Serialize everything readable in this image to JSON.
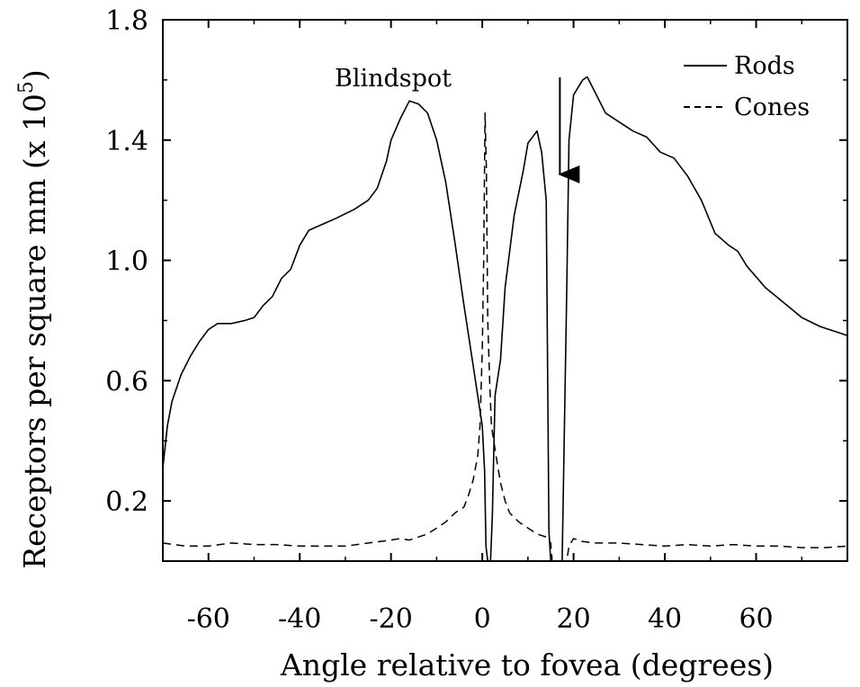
{
  "chart_data": {
    "type": "line",
    "xlabel": "Angle relative to fovea (degrees)",
    "ylabel": "Receptors per square mm",
    "ylabel_suffix": "(x 10",
    "ylabel_exponent": "5",
    "ylabel_close": ")",
    "xlim": [
      -70,
      80
    ],
    "ylim": [
      0,
      1.8
    ],
    "x_ticks": [
      -60,
      -40,
      -20,
      0,
      20,
      40,
      60
    ],
    "x_tick_labels": [
      "-60",
      "-40",
      "-20",
      "0",
      "20",
      "40",
      "60"
    ],
    "y_ticks": [
      0.2,
      0.6,
      1.0,
      1.4,
      1.8
    ],
    "y_tick_labels": [
      "0.2",
      "0.6",
      "1.0",
      "1.4",
      "1.8"
    ],
    "grid": false,
    "legend_position": "top-right",
    "annotation": {
      "text": "Blindspot",
      "x": 17,
      "y": 1.25
    },
    "series": [
      {
        "name": "Rods",
        "style": "solid",
        "points": [
          [
            -70,
            0.31
          ],
          [
            -69,
            0.45
          ],
          [
            -68,
            0.53
          ],
          [
            -66,
            0.62
          ],
          [
            -64,
            0.68
          ],
          [
            -62,
            0.73
          ],
          [
            -60,
            0.77
          ],
          [
            -58,
            0.79
          ],
          [
            -55,
            0.79
          ],
          [
            -52,
            0.8
          ],
          [
            -50,
            0.81
          ],
          [
            -48,
            0.85
          ],
          [
            -46,
            0.88
          ],
          [
            -44,
            0.94
          ],
          [
            -42,
            0.97
          ],
          [
            -40,
            1.05
          ],
          [
            -38,
            1.1
          ],
          [
            -35,
            1.12
          ],
          [
            -32,
            1.14
          ],
          [
            -28,
            1.17
          ],
          [
            -25,
            1.2
          ],
          [
            -23,
            1.24
          ],
          [
            -21,
            1.33
          ],
          [
            -20,
            1.4
          ],
          [
            -18,
            1.47
          ],
          [
            -16,
            1.53
          ],
          [
            -14,
            1.52
          ],
          [
            -12,
            1.49
          ],
          [
            -10,
            1.4
          ],
          [
            -8,
            1.26
          ],
          [
            -6,
            1.06
          ],
          [
            -4,
            0.85
          ],
          [
            -2,
            0.65
          ],
          [
            0,
            0.45
          ],
          [
            0.5,
            0.3
          ],
          [
            0.8,
            0.05
          ],
          [
            1.2,
            0.0
          ],
          [
            1.8,
            0.0
          ],
          [
            2.2,
            0.15
          ],
          [
            2.8,
            0.55
          ],
          [
            4,
            0.67
          ],
          [
            5,
            0.91
          ],
          [
            7,
            1.15
          ],
          [
            9,
            1.3
          ],
          [
            10,
            1.39
          ],
          [
            12,
            1.43
          ],
          [
            13,
            1.36
          ],
          [
            14,
            1.2
          ],
          [
            14.6,
            0.1
          ],
          [
            15,
            0.0
          ],
          [
            17.5,
            0.0
          ],
          [
            18.5,
            0.9
          ],
          [
            19,
            1.4
          ],
          [
            20,
            1.55
          ],
          [
            22,
            1.6
          ],
          [
            23,
            1.61
          ],
          [
            25,
            1.55
          ],
          [
            27,
            1.49
          ],
          [
            30,
            1.46
          ],
          [
            33,
            1.43
          ],
          [
            36,
            1.41
          ],
          [
            39,
            1.36
          ],
          [
            42,
            1.34
          ],
          [
            45,
            1.28
          ],
          [
            48,
            1.2
          ],
          [
            51,
            1.09
          ],
          [
            54,
            1.05
          ],
          [
            56,
            1.03
          ],
          [
            58,
            0.98
          ],
          [
            62,
            0.91
          ],
          [
            66,
            0.86
          ],
          [
            70,
            0.81
          ],
          [
            74,
            0.78
          ],
          [
            78,
            0.76
          ],
          [
            80,
            0.75
          ]
        ]
      },
      {
        "name": "Cones",
        "style": "dashed",
        "points": [
          [
            -70,
            0.06
          ],
          [
            -65,
            0.05
          ],
          [
            -60,
            0.05
          ],
          [
            -55,
            0.06
          ],
          [
            -50,
            0.055
          ],
          [
            -45,
            0.055
          ],
          [
            -40,
            0.05
          ],
          [
            -35,
            0.05
          ],
          [
            -30,
            0.05
          ],
          [
            -25,
            0.06
          ],
          [
            -20,
            0.07
          ],
          [
            -18,
            0.075
          ],
          [
            -16,
            0.07
          ],
          [
            -14,
            0.08
          ],
          [
            -12,
            0.09
          ],
          [
            -10,
            0.11
          ],
          [
            -8,
            0.13
          ],
          [
            -6,
            0.16
          ],
          [
            -4,
            0.18
          ],
          [
            -3,
            0.22
          ],
          [
            -2,
            0.27
          ],
          [
            -1,
            0.35
          ],
          [
            -0.5,
            0.45
          ],
          [
            0,
            0.7
          ],
          [
            0.3,
            1.0
          ],
          [
            0.6,
            1.49
          ],
          [
            0.9,
            1.3
          ],
          [
            1.2,
            0.8
          ],
          [
            1.6,
            0.6
          ],
          [
            2,
            0.45
          ],
          [
            3,
            0.35
          ],
          [
            4,
            0.26
          ],
          [
            5,
            0.2
          ],
          [
            6,
            0.16
          ],
          [
            8,
            0.13
          ],
          [
            10,
            0.11
          ],
          [
            12,
            0.09
          ],
          [
            14,
            0.08
          ],
          [
            15,
            0.06
          ],
          [
            15.3,
            0.0
          ],
          [
            18.5,
            0.0
          ],
          [
            19,
            0.05
          ],
          [
            20,
            0.075
          ],
          [
            22,
            0.065
          ],
          [
            25,
            0.06
          ],
          [
            30,
            0.06
          ],
          [
            35,
            0.055
          ],
          [
            40,
            0.05
          ],
          [
            45,
            0.055
          ],
          [
            50,
            0.05
          ],
          [
            55,
            0.055
          ],
          [
            60,
            0.05
          ],
          [
            65,
            0.05
          ],
          [
            70,
            0.045
          ],
          [
            75,
            0.045
          ],
          [
            80,
            0.05
          ]
        ]
      }
    ]
  }
}
